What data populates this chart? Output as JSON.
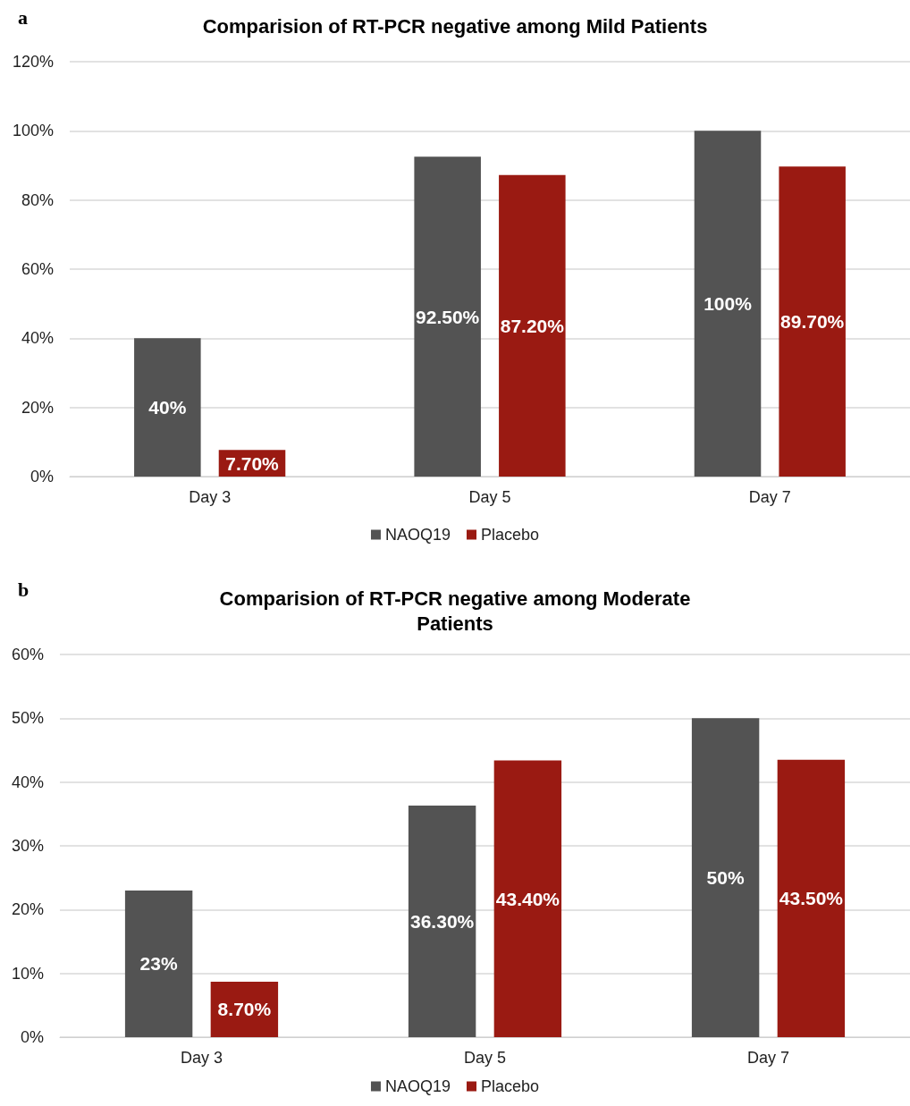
{
  "chart_data": [
    {
      "type": "bar",
      "title": "Comparision of RT-PCR negative among Mild Patients",
      "annotations": [
        "a"
      ],
      "categories": [
        "Day 3",
        "Day 5",
        "Day 7"
      ],
      "series": [
        {
          "name": "NAOQ19",
          "color": "#535353",
          "values": [
            40,
            92.5,
            100
          ],
          "value_labels": [
            "40%",
            "92.50%",
            "100%"
          ]
        },
        {
          "name": "Placebo",
          "color": "#9a1a12",
          "values": [
            7.7,
            87.2,
            89.7
          ],
          "value_labels": [
            "7.70%",
            "87.20%",
            "89.70%"
          ]
        }
      ],
      "ylim": [
        0,
        120
      ],
      "yticks": [
        {
          "value": 0,
          "label": "0%"
        },
        {
          "value": 20,
          "label": "20%"
        },
        {
          "value": 40,
          "label": "40%"
        },
        {
          "value": 60,
          "label": "60%"
        },
        {
          "value": 80,
          "label": "80%"
        },
        {
          "value": 100,
          "label": "100%"
        },
        {
          "value": 120,
          "label": "120%"
        }
      ],
      "grid": "y",
      "legend": "bottom"
    },
    {
      "type": "bar",
      "title": "Comparision of RT-PCR negative among Moderate\nPatients",
      "annotations": [
        "b"
      ],
      "categories": [
        "Day 3",
        "Day 5",
        "Day 7"
      ],
      "series": [
        {
          "name": "NAOQ19",
          "color": "#535353",
          "values": [
            23,
            36.3,
            50
          ],
          "value_labels": [
            "23%",
            "36.30%",
            "50%"
          ]
        },
        {
          "name": "Placebo",
          "color": "#9a1a12",
          "values": [
            8.7,
            43.4,
            43.5
          ],
          "value_labels": [
            "8.70%",
            "43.40%",
            "43.50%"
          ]
        }
      ],
      "ylim": [
        0,
        60
      ],
      "yticks": [
        {
          "value": 0,
          "label": "0%"
        },
        {
          "value": 10,
          "label": "10%"
        },
        {
          "value": 20,
          "label": "20%"
        },
        {
          "value": 30,
          "label": "30%"
        },
        {
          "value": 40,
          "label": "40%"
        },
        {
          "value": 50,
          "label": "50%"
        },
        {
          "value": 60,
          "label": "60%"
        }
      ],
      "grid": "y",
      "legend": "bottom"
    }
  ]
}
